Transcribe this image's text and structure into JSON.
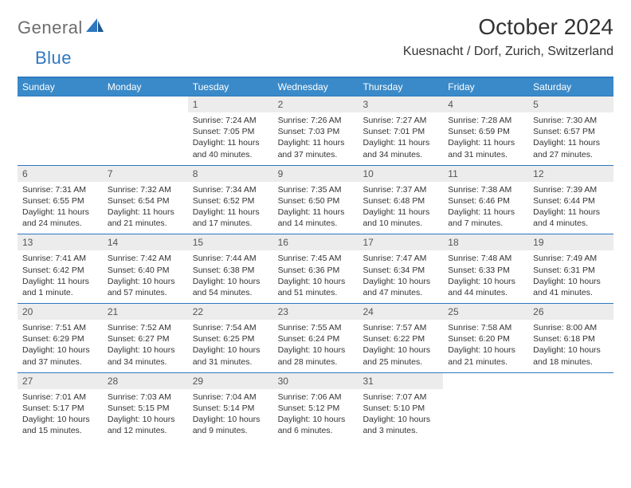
{
  "logo": {
    "text1": "General",
    "text2": "Blue"
  },
  "title": "October 2024",
  "location": "Kuesnacht / Dorf, Zurich, Switzerland",
  "colors": {
    "header_bg": "#3a8ac9",
    "border": "#2f78bf",
    "daynum_bg": "#ececec",
    "text": "#333333"
  },
  "daysOfWeek": [
    "Sunday",
    "Monday",
    "Tuesday",
    "Wednesday",
    "Thursday",
    "Friday",
    "Saturday"
  ],
  "weeks": [
    [
      {
        "n": "",
        "sunrise": "",
        "sunset": "",
        "daylight": ""
      },
      {
        "n": "",
        "sunrise": "",
        "sunset": "",
        "daylight": ""
      },
      {
        "n": "1",
        "sunrise": "Sunrise: 7:24 AM",
        "sunset": "Sunset: 7:05 PM",
        "daylight": "Daylight: 11 hours and 40 minutes."
      },
      {
        "n": "2",
        "sunrise": "Sunrise: 7:26 AM",
        "sunset": "Sunset: 7:03 PM",
        "daylight": "Daylight: 11 hours and 37 minutes."
      },
      {
        "n": "3",
        "sunrise": "Sunrise: 7:27 AM",
        "sunset": "Sunset: 7:01 PM",
        "daylight": "Daylight: 11 hours and 34 minutes."
      },
      {
        "n": "4",
        "sunrise": "Sunrise: 7:28 AM",
        "sunset": "Sunset: 6:59 PM",
        "daylight": "Daylight: 11 hours and 31 minutes."
      },
      {
        "n": "5",
        "sunrise": "Sunrise: 7:30 AM",
        "sunset": "Sunset: 6:57 PM",
        "daylight": "Daylight: 11 hours and 27 minutes."
      }
    ],
    [
      {
        "n": "6",
        "sunrise": "Sunrise: 7:31 AM",
        "sunset": "Sunset: 6:55 PM",
        "daylight": "Daylight: 11 hours and 24 minutes."
      },
      {
        "n": "7",
        "sunrise": "Sunrise: 7:32 AM",
        "sunset": "Sunset: 6:54 PM",
        "daylight": "Daylight: 11 hours and 21 minutes."
      },
      {
        "n": "8",
        "sunrise": "Sunrise: 7:34 AM",
        "sunset": "Sunset: 6:52 PM",
        "daylight": "Daylight: 11 hours and 17 minutes."
      },
      {
        "n": "9",
        "sunrise": "Sunrise: 7:35 AM",
        "sunset": "Sunset: 6:50 PM",
        "daylight": "Daylight: 11 hours and 14 minutes."
      },
      {
        "n": "10",
        "sunrise": "Sunrise: 7:37 AM",
        "sunset": "Sunset: 6:48 PM",
        "daylight": "Daylight: 11 hours and 10 minutes."
      },
      {
        "n": "11",
        "sunrise": "Sunrise: 7:38 AM",
        "sunset": "Sunset: 6:46 PM",
        "daylight": "Daylight: 11 hours and 7 minutes."
      },
      {
        "n": "12",
        "sunrise": "Sunrise: 7:39 AM",
        "sunset": "Sunset: 6:44 PM",
        "daylight": "Daylight: 11 hours and 4 minutes."
      }
    ],
    [
      {
        "n": "13",
        "sunrise": "Sunrise: 7:41 AM",
        "sunset": "Sunset: 6:42 PM",
        "daylight": "Daylight: 11 hours and 1 minute."
      },
      {
        "n": "14",
        "sunrise": "Sunrise: 7:42 AM",
        "sunset": "Sunset: 6:40 PM",
        "daylight": "Daylight: 10 hours and 57 minutes."
      },
      {
        "n": "15",
        "sunrise": "Sunrise: 7:44 AM",
        "sunset": "Sunset: 6:38 PM",
        "daylight": "Daylight: 10 hours and 54 minutes."
      },
      {
        "n": "16",
        "sunrise": "Sunrise: 7:45 AM",
        "sunset": "Sunset: 6:36 PM",
        "daylight": "Daylight: 10 hours and 51 minutes."
      },
      {
        "n": "17",
        "sunrise": "Sunrise: 7:47 AM",
        "sunset": "Sunset: 6:34 PM",
        "daylight": "Daylight: 10 hours and 47 minutes."
      },
      {
        "n": "18",
        "sunrise": "Sunrise: 7:48 AM",
        "sunset": "Sunset: 6:33 PM",
        "daylight": "Daylight: 10 hours and 44 minutes."
      },
      {
        "n": "19",
        "sunrise": "Sunrise: 7:49 AM",
        "sunset": "Sunset: 6:31 PM",
        "daylight": "Daylight: 10 hours and 41 minutes."
      }
    ],
    [
      {
        "n": "20",
        "sunrise": "Sunrise: 7:51 AM",
        "sunset": "Sunset: 6:29 PM",
        "daylight": "Daylight: 10 hours and 37 minutes."
      },
      {
        "n": "21",
        "sunrise": "Sunrise: 7:52 AM",
        "sunset": "Sunset: 6:27 PM",
        "daylight": "Daylight: 10 hours and 34 minutes."
      },
      {
        "n": "22",
        "sunrise": "Sunrise: 7:54 AM",
        "sunset": "Sunset: 6:25 PM",
        "daylight": "Daylight: 10 hours and 31 minutes."
      },
      {
        "n": "23",
        "sunrise": "Sunrise: 7:55 AM",
        "sunset": "Sunset: 6:24 PM",
        "daylight": "Daylight: 10 hours and 28 minutes."
      },
      {
        "n": "24",
        "sunrise": "Sunrise: 7:57 AM",
        "sunset": "Sunset: 6:22 PM",
        "daylight": "Daylight: 10 hours and 25 minutes."
      },
      {
        "n": "25",
        "sunrise": "Sunrise: 7:58 AM",
        "sunset": "Sunset: 6:20 PM",
        "daylight": "Daylight: 10 hours and 21 minutes."
      },
      {
        "n": "26",
        "sunrise": "Sunrise: 8:00 AM",
        "sunset": "Sunset: 6:18 PM",
        "daylight": "Daylight: 10 hours and 18 minutes."
      }
    ],
    [
      {
        "n": "27",
        "sunrise": "Sunrise: 7:01 AM",
        "sunset": "Sunset: 5:17 PM",
        "daylight": "Daylight: 10 hours and 15 minutes."
      },
      {
        "n": "28",
        "sunrise": "Sunrise: 7:03 AM",
        "sunset": "Sunset: 5:15 PM",
        "daylight": "Daylight: 10 hours and 12 minutes."
      },
      {
        "n": "29",
        "sunrise": "Sunrise: 7:04 AM",
        "sunset": "Sunset: 5:14 PM",
        "daylight": "Daylight: 10 hours and 9 minutes."
      },
      {
        "n": "30",
        "sunrise": "Sunrise: 7:06 AM",
        "sunset": "Sunset: 5:12 PM",
        "daylight": "Daylight: 10 hours and 6 minutes."
      },
      {
        "n": "31",
        "sunrise": "Sunrise: 7:07 AM",
        "sunset": "Sunset: 5:10 PM",
        "daylight": "Daylight: 10 hours and 3 minutes."
      },
      {
        "n": "",
        "sunrise": "",
        "sunset": "",
        "daylight": ""
      },
      {
        "n": "",
        "sunrise": "",
        "sunset": "",
        "daylight": ""
      }
    ]
  ]
}
